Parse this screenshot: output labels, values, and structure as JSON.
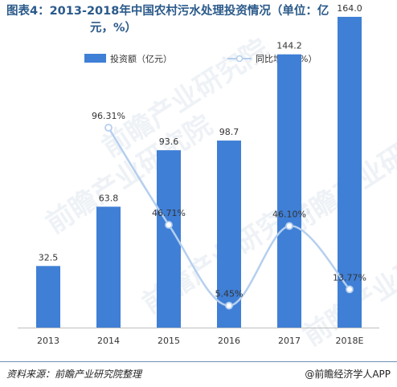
{
  "title": {
    "line1": "图表4：2013-2018年中国农村污水处理投资情况（单位：亿",
    "line2": "元，%）"
  },
  "colors": {
    "bar": "#3f7fd6",
    "line": "#b5cfee",
    "title": "#2b5a8a"
  },
  "watermark": "前瞻产业研究院",
  "footer": {
    "source": "资料来源：前瞻产业研究院整理",
    "brand": "@前瞻经济学人APP"
  },
  "chart_data": {
    "type": "bar",
    "categories": [
      "2013",
      "2014",
      "2015",
      "2016",
      "2017",
      "2018E"
    ],
    "series": [
      {
        "name": "投资额（亿元）",
        "type": "bar",
        "values": [
          32.5,
          63.8,
          93.6,
          98.7,
          144.2,
          164.0
        ],
        "labels": [
          "32.5",
          "63.8",
          "93.6",
          "98.7",
          "144.2",
          "164.0"
        ]
      },
      {
        "name": "同比增长（%）",
        "type": "line",
        "values": [
          null,
          96.31,
          46.71,
          5.45,
          46.1,
          13.77
        ],
        "labels": [
          "",
          "96.31%",
          "46.71%",
          "5.45%",
          "46.10%",
          "13.77%"
        ]
      }
    ],
    "grid": false,
    "legend": "top"
  }
}
